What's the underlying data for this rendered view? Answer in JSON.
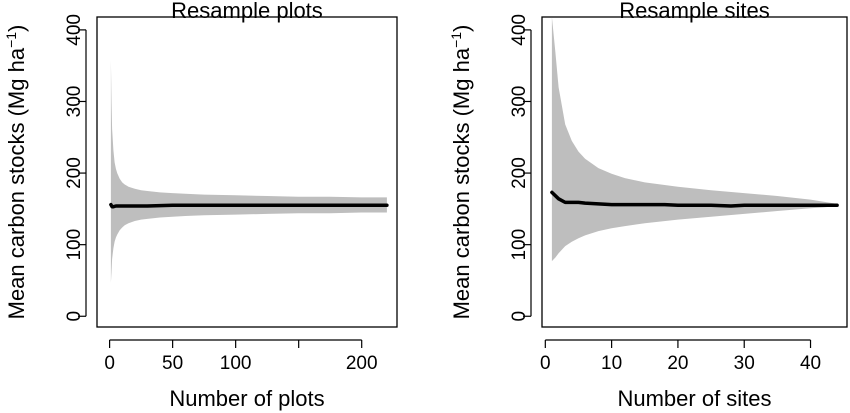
{
  "figure": {
    "background": "#ffffff",
    "band_color": "#bebebe",
    "line_color": "#000000"
  },
  "chart_data": [
    {
      "type": "line",
      "title": "Resample plots",
      "xlabel": "Number of plots",
      "ylabel": "Mean carbon stocks (Mg ha",
      "ylabel_sup": "−1",
      "ylabel_close": ")",
      "xlim": [
        -10,
        228
      ],
      "ylim": [
        -15,
        418
      ],
      "xticks": [
        0,
        50,
        100,
        150,
        200
      ],
      "xtick_labels": [
        "0",
        "50",
        "100",
        "",
        "200"
      ],
      "yticks": [
        0,
        100,
        200,
        300,
        400
      ],
      "ytick_labels": [
        "0",
        "100",
        "200",
        "300",
        "400"
      ],
      "grid": false,
      "series": [
        {
          "kind": "mean",
          "x": [
            1,
            2,
            3,
            5,
            10,
            20,
            30,
            50,
            75,
            100,
            125,
            150,
            175,
            200,
            220
          ],
          "y": [
            156,
            153,
            153,
            154,
            154,
            154,
            154,
            155,
            155,
            155,
            155,
            155,
            155,
            155,
            155
          ]
        },
        {
          "kind": "band",
          "x": [
            1,
            1.5,
            2,
            3,
            4,
            5,
            6,
            8,
            10,
            12,
            15,
            20,
            25,
            30,
            40,
            50,
            60,
            75,
            100,
            125,
            150,
            175,
            200,
            220
          ],
          "upper": [
            358,
            300,
            262,
            232,
            215,
            206,
            200,
            192,
            187,
            184,
            181,
            178,
            176,
            175,
            173,
            172,
            171,
            170,
            169,
            168,
            167,
            167,
            166,
            166
          ],
          "lower": [
            47,
            62,
            80,
            95,
            104,
            110,
            114,
            120,
            124,
            127,
            130,
            133,
            135,
            136,
            138,
            139,
            140,
            141,
            142,
            143,
            144,
            144,
            145,
            145
          ]
        }
      ]
    },
    {
      "type": "line",
      "title": "Resample sites",
      "xlabel": "Number of sites",
      "ylabel": "Mean carbon stocks (Mg ha",
      "ylabel_sup": "−1",
      "ylabel_close": ")",
      "xlim": [
        -0.5,
        45.5
      ],
      "ylim": [
        -15,
        418
      ],
      "xticks": [
        0,
        10,
        20,
        30,
        40
      ],
      "xtick_labels": [
        "0",
        "10",
        "20",
        "30",
        "40"
      ],
      "yticks": [
        0,
        100,
        200,
        300,
        400
      ],
      "ytick_labels": [
        "0",
        "100",
        "200",
        "300",
        "400"
      ],
      "grid": false,
      "series": [
        {
          "kind": "mean",
          "x": [
            1,
            2,
            3,
            4,
            5,
            6,
            8,
            10,
            12,
            15,
            18,
            20,
            22,
            25,
            28,
            30,
            35,
            40,
            44
          ],
          "y": [
            173,
            164,
            159,
            159,
            159,
            158,
            157,
            156,
            156,
            156,
            156,
            155,
            155,
            155,
            154,
            155,
            155,
            155,
            155
          ]
        },
        {
          "kind": "band",
          "x": [
            1,
            1.5,
            2,
            3,
            4,
            5,
            6,
            8,
            10,
            12,
            15,
            20,
            25,
            30,
            35,
            40,
            42,
            44
          ],
          "upper": [
            418,
            370,
            320,
            268,
            245,
            230,
            220,
            207,
            199,
            193,
            187,
            181,
            176,
            172,
            168,
            163,
            160,
            157
          ],
          "lower": [
            77,
            82,
            88,
            98,
            104,
            109,
            113,
            119,
            123,
            126,
            130,
            135,
            139,
            143,
            147,
            151,
            152,
            154
          ]
        }
      ]
    }
  ]
}
